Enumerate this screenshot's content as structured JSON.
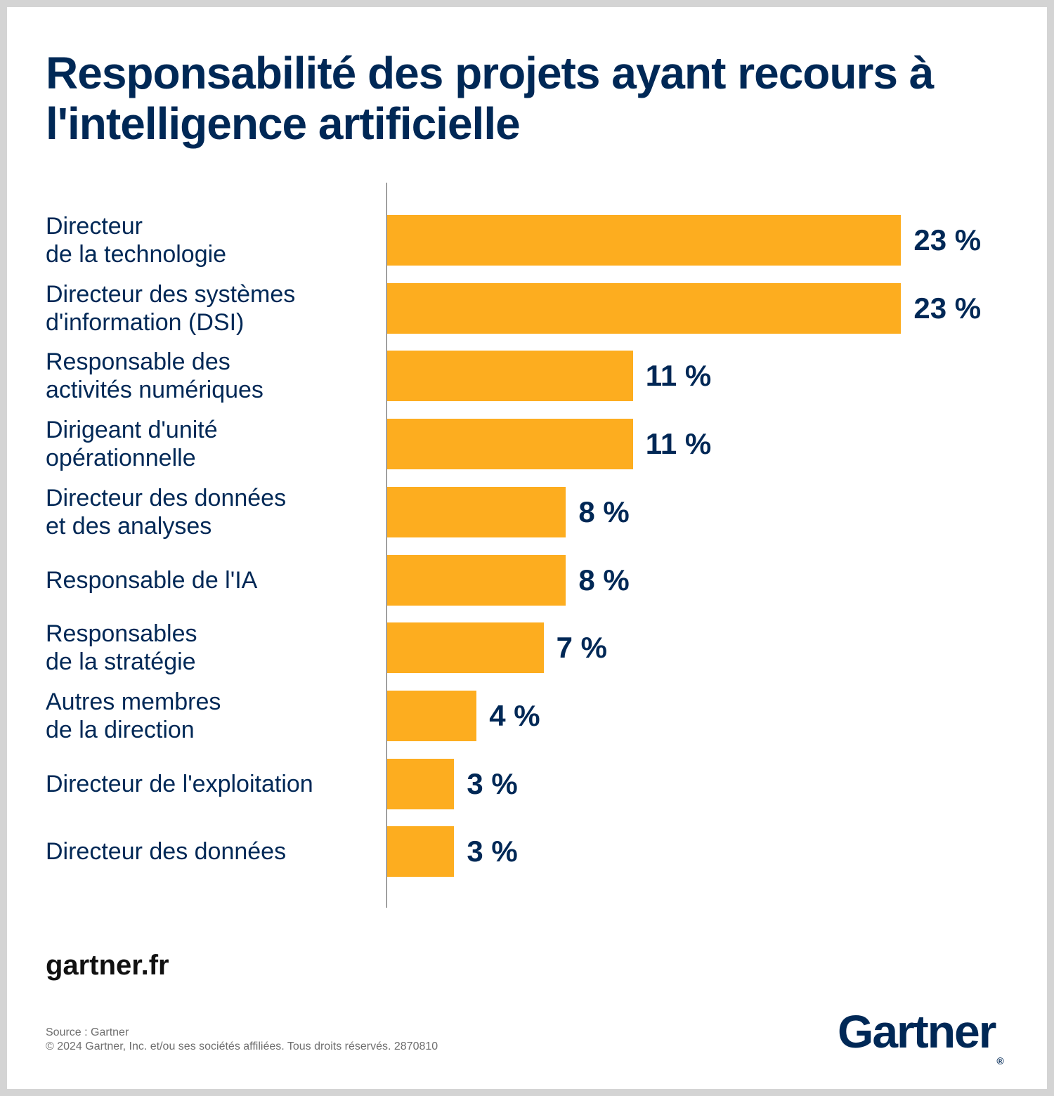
{
  "title": "Responsabilité des projets ayant recours à l'intelligence artificielle",
  "colors": {
    "bar": "#FDAD1F",
    "text": "#002856",
    "background": "#FFFFFF",
    "frame": "#D4D4D4"
  },
  "chart_data": {
    "type": "bar",
    "orientation": "horizontal",
    "title": "Responsabilité des projets ayant recours à l'intelligence artificielle",
    "categories": [
      "Directeur\nde la technologie",
      "Directeur des systèmes\nd'information (DSI)",
      "Responsable des\nactivités numériques",
      "Dirigeant d'unité\nopérationnelle",
      "Directeur des données\net des analyses",
      "Responsable de l'IA",
      "Responsables\nde la stratégie",
      "Autres membres\nde la direction",
      "Directeur de l'exploitation",
      "Directeur des données"
    ],
    "values": [
      23,
      23,
      11,
      11,
      8,
      8,
      7,
      4,
      3,
      3
    ],
    "value_labels": [
      "23 %",
      "23 %",
      "11 %",
      "11 %",
      "8 %",
      "8 %",
      "7 %",
      "4 %",
      "3 %",
      "3 %"
    ],
    "unit": "%",
    "grid": false,
    "legend": "none"
  },
  "footer": {
    "site": "gartner.fr",
    "source": "Source : Gartner",
    "copyright": "© 2024 Gartner, Inc. et/ou ses sociétés affiliées. Tous droits réservés. 2870810",
    "logo_text": "Gartner",
    "logo_mark": "®"
  }
}
